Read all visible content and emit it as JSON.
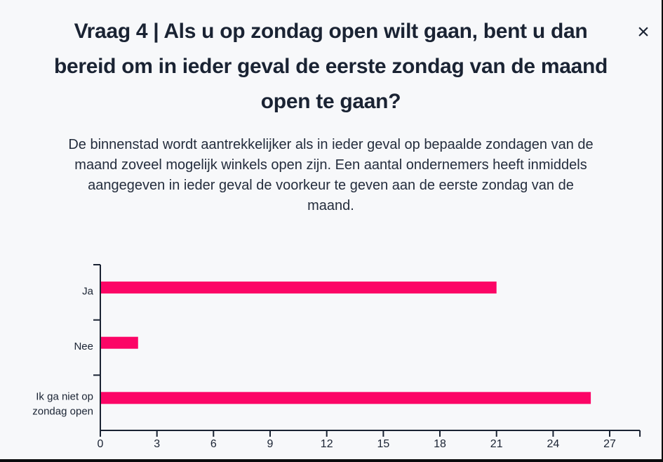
{
  "header": {
    "title": "Vraag 4 | Als u op zondag open wilt gaan, bent u dan bereid om in ieder geval de eerste zondag van de maand open te gaan?",
    "title_lines": [
      "Vraag 4 | Als u op zondag open wilt gaan, bent u dan",
      "bereid om in ieder geval de eerste zondag van de maand",
      "open te gaan?"
    ],
    "close_icon": "×"
  },
  "description": "De binnenstad wordt aantrekkelijker als in ieder geval op bepaalde zondagen van de maand zoveel mogelijk winkels open zijn. Een aantal ondernemers heeft inmiddels aangegeven in ieder geval de voorkeur te geven aan de eerste zondag van de maand.",
  "description_lines": [
    "De binnenstad wordt aantrekkelijker als in ieder geval op bepaalde zondagen van de",
    "maand zoveel mogelijk winkels open zijn. Een aantal ondernemers heeft inmiddels",
    "aangegeven in ieder geval de voorkeur te geven aan de eerste zondag van de",
    "maand."
  ],
  "chart_data": {
    "type": "bar",
    "orientation": "horizontal",
    "title": "",
    "xlabel": "",
    "ylabel": "",
    "categories": [
      "Ja",
      "Nee",
      "Ik ga niet op zondag open"
    ],
    "values": [
      21,
      2,
      26
    ],
    "xticks": [
      0,
      3,
      6,
      9,
      12,
      15,
      18,
      21,
      24,
      27
    ],
    "xlim": [
      0,
      28.6
    ],
    "grid": false,
    "legend": false,
    "bar_color": "#fc0566",
    "axis_color": "#1a2333"
  },
  "colors": {
    "background": "#f7f8fa",
    "text": "#1a2333",
    "accent": "#fc0566",
    "edge": "#0a0b0d"
  }
}
